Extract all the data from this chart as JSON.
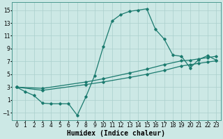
{
  "title": "",
  "xlabel": "Humidex (Indice chaleur)",
  "ylabel": "",
  "bg_color": "#cce8e5",
  "grid_color": "#aacfcc",
  "line_color": "#1a7a6e",
  "xlim": [
    -0.5,
    23.5
  ],
  "ylim": [
    -2.2,
    16.2
  ],
  "yticks": [
    -1,
    1,
    3,
    5,
    7,
    9,
    11,
    13,
    15
  ],
  "xticks": [
    0,
    1,
    2,
    3,
    4,
    5,
    6,
    7,
    8,
    9,
    10,
    11,
    12,
    13,
    14,
    15,
    16,
    17,
    18,
    19,
    20,
    21,
    22,
    23
  ],
  "curve1_x": [
    0,
    1,
    2,
    3,
    4,
    5,
    6,
    7,
    8,
    9,
    10,
    11,
    12,
    13,
    14,
    15,
    16,
    17,
    18,
    19,
    20,
    21,
    22,
    23
  ],
  "curve1_y": [
    3.0,
    2.3,
    1.7,
    0.5,
    0.4,
    0.4,
    0.4,
    -1.4,
    1.5,
    4.8,
    9.3,
    13.3,
    14.3,
    14.8,
    15.0,
    15.2,
    12.0,
    10.5,
    8.0,
    7.8,
    6.0,
    7.3,
    7.9,
    7.2
  ],
  "curve2_x": [
    0,
    3,
    8,
    10,
    13,
    15,
    17,
    19,
    20,
    21,
    22,
    23
  ],
  "curve2_y": [
    3.0,
    2.8,
    3.8,
    4.3,
    5.2,
    5.8,
    6.5,
    7.1,
    7.2,
    7.4,
    7.6,
    7.8
  ],
  "curve3_x": [
    0,
    3,
    8,
    10,
    13,
    15,
    17,
    19,
    20,
    21,
    22,
    23
  ],
  "curve3_y": [
    3.0,
    2.5,
    3.4,
    3.8,
    4.5,
    5.0,
    5.6,
    6.3,
    6.5,
    6.7,
    6.9,
    7.1
  ],
  "xlabel_fontsize": 7,
  "tick_fontsize": 5.5,
  "linewidth": 0.9,
  "marker": "D",
  "markersize": 1.8
}
